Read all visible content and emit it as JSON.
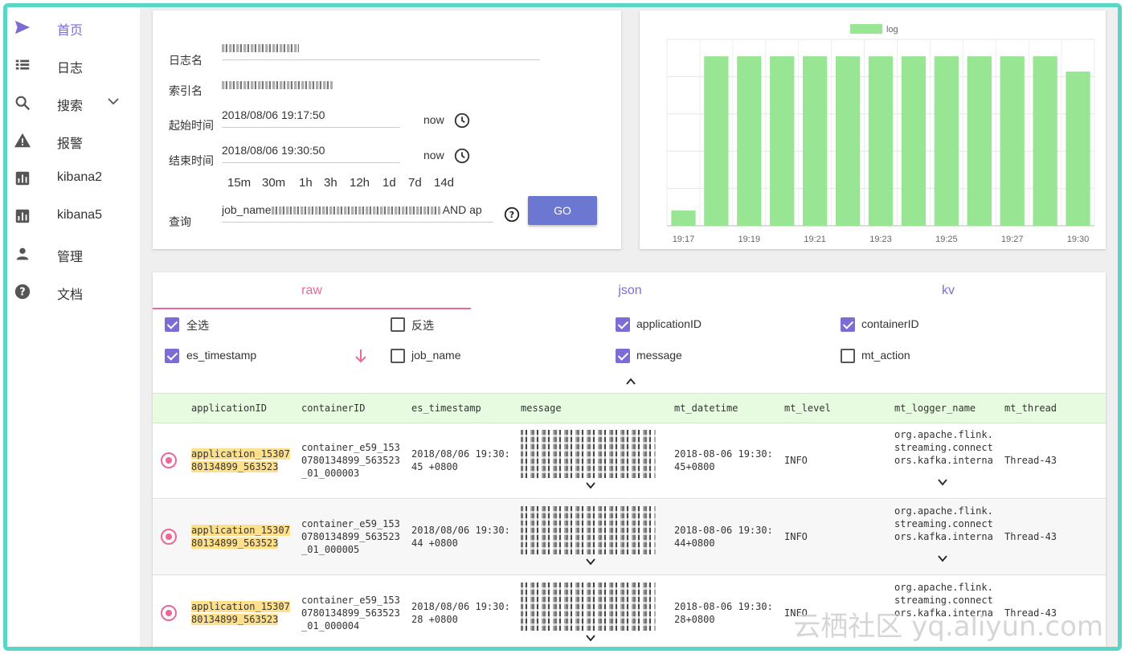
{
  "nav": {
    "items": [
      {
        "label": "首页",
        "icon": "send-icon"
      },
      {
        "label": "日志",
        "icon": "list-icon"
      },
      {
        "label": "搜索",
        "icon": "search-icon"
      },
      {
        "label": "报警",
        "icon": "warning-icon"
      },
      {
        "label": "kibana2",
        "icon": "chart-icon"
      },
      {
        "label": "kibana5",
        "icon": "chart-icon"
      },
      {
        "label": "管理",
        "icon": "person-icon"
      },
      {
        "label": "文档",
        "icon": "help-icon"
      }
    ]
  },
  "search": {
    "log_name_label": "日志名",
    "index_name_label": "索引名",
    "start_label": "起始时间",
    "start_value": "2018/08/06 19:17:50",
    "end_label": "结束时间",
    "end_value": "2018/08/06 19:30:50",
    "now_label": "now",
    "quick_ranges": [
      "15m",
      "30m",
      "1h",
      "3h",
      "12h",
      "1d",
      "7d",
      "14d"
    ],
    "query_label": "查询",
    "query_prefix": "job_name",
    "query_suffix": " AND ap",
    "go_label": "GO"
  },
  "chart_data": {
    "type": "bar",
    "legend": [
      "log"
    ],
    "legend_position": "top",
    "color": "#98e594",
    "categories": [
      "19:17",
      "",
      "19:19",
      "",
      "19:21",
      "",
      "19:23",
      "",
      "19:25",
      "",
      "19:27",
      "",
      "19:30"
    ],
    "tick_labels": [
      "19:17",
      "19:19",
      "19:21",
      "19:23",
      "19:25",
      "19:27",
      "19:30"
    ],
    "values": [
      9,
      100,
      100,
      100,
      100,
      100,
      100,
      100,
      100,
      100,
      100,
      100,
      91
    ],
    "ylim": [
      0,
      110
    ],
    "grid": true
  },
  "results": {
    "tabs": [
      "raw",
      "json",
      "kv"
    ],
    "active_tab": "raw",
    "checkboxes": [
      {
        "label": "全选",
        "checked": true
      },
      {
        "label": "反选",
        "checked": false
      },
      {
        "label": "applicationID",
        "checked": true
      },
      {
        "label": "containerID",
        "checked": true
      },
      {
        "label": "es_timestamp",
        "checked": true
      },
      {
        "label": "job_name",
        "checked": false
      },
      {
        "label": "message",
        "checked": true
      },
      {
        "label": "mt_action",
        "checked": false
      }
    ],
    "columns": [
      "applicationID",
      "containerID",
      "es_timestamp",
      "message",
      "mt_datetime",
      "mt_level",
      "mt_logger_name",
      "mt_thread"
    ],
    "rows": [
      {
        "app1": "application_15307",
        "app2": "80134899_563523",
        "c1": "container_e59_153",
        "c2": "0780134899_563523",
        "c3": "_01_000003",
        "ts1": "2018/08/06 19:30:",
        "ts2": "45 +0800",
        "dt1": "2018-08-06 19:30:",
        "dt2": "45+0800",
        "level": "INFO",
        "lg1": "org.apache.flink.",
        "lg2": "streaming.connect",
        "lg3": "ors.kafka.interna",
        "thread": "Thread-43"
      },
      {
        "app1": "application_15307",
        "app2": "80134899_563523",
        "c1": "container_e59_153",
        "c2": "0780134899_563523",
        "c3": "_01_000005",
        "ts1": "2018/08/06 19:30:",
        "ts2": "44 +0800",
        "dt1": "2018-08-06 19:30:",
        "dt2": "44+0800",
        "level": "INFO",
        "lg1": "org.apache.flink.",
        "lg2": "streaming.connect",
        "lg3": "ors.kafka.interna",
        "thread": "Thread-43"
      },
      {
        "app1": "application_15307",
        "app2": "80134899_563523",
        "c1": "container_e59_153",
        "c2": "0780134899_563523",
        "c3": "_01_000004",
        "ts1": "2018/08/06 19:30:",
        "ts2": "28 +0800",
        "dt1": "2018-08-06 19:30:",
        "dt2": "28+0800",
        "level": "INFO",
        "lg1": "org.apache.flink.",
        "lg2": "streaming.connect",
        "lg3": "ors.kafka.interna",
        "thread": "Thread-43"
      }
    ]
  },
  "watermark": "云栖社区 yq.aliyun.com"
}
